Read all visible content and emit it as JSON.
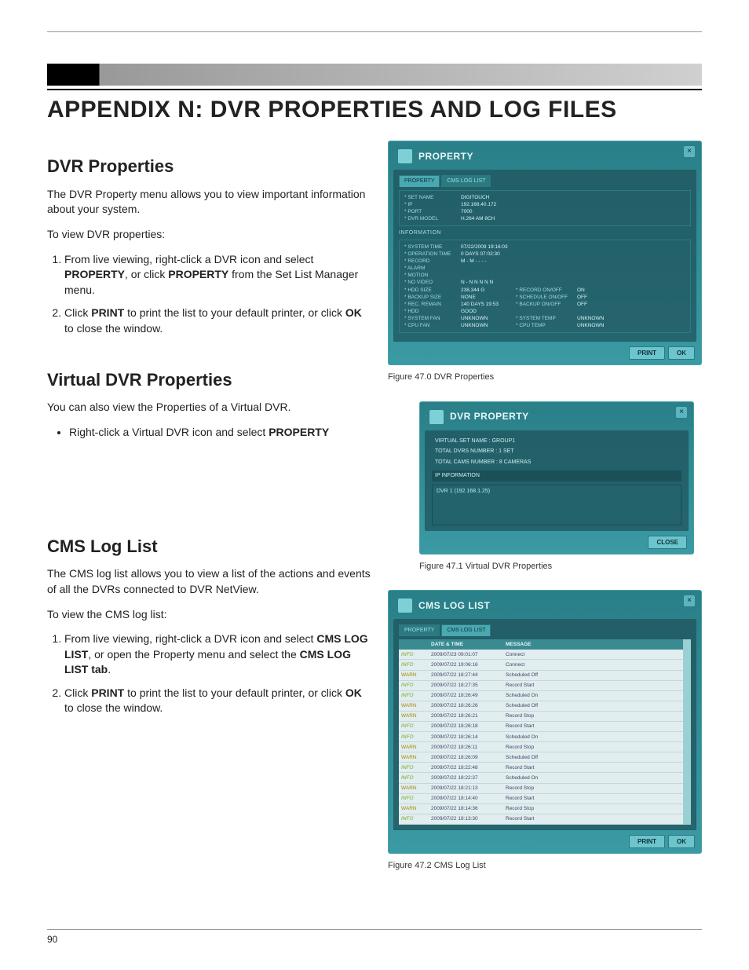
{
  "page_number": "90",
  "main_title": "APPENDIX N: DVR PROPERTIES AND LOG FILES",
  "sections": {
    "dvr_props": {
      "heading": "DVR Properties",
      "intro": "The DVR Property menu allows you to view important information about your system.",
      "lead": "To view DVR properties:",
      "step1_pre": "From live viewing, right-click a DVR icon and select ",
      "step1_b1": "PROPERTY",
      "step1_mid": ", or click ",
      "step1_b2": "PROPERTY",
      "step1_post": " from the Set List Manager menu.",
      "step2_pre": "Click ",
      "step2_b1": "PRINT",
      "step2_mid": " to print the list to your default printer, or click ",
      "step2_b2": "OK",
      "step2_post": " to close the window."
    },
    "virtual": {
      "heading": "Virtual DVR Properties",
      "intro": "You can also view the Properties of a Virtual DVR.",
      "bullet_pre": "Right-click a Virtual DVR icon and select ",
      "bullet_b": "PROPERTY"
    },
    "cms": {
      "heading": "CMS Log List",
      "intro": "The CMS log list allows you to view a list of the actions and events of all the DVRs connected to DVR NetView.",
      "lead": "To view the CMS log list:",
      "step1_pre": "From live viewing, right-click a DVR icon and select ",
      "step1_b1": "CMS LOG LIST",
      "step1_mid": ", or open the Property menu and select the ",
      "step1_b2": "CMS LOG LIST tab",
      "step1_post": ".",
      "step2_pre": "Click ",
      "step2_b1": "PRINT",
      "step2_mid": " to print the list to your default printer, or click ",
      "step2_b2": "OK",
      "step2_post": " to close the window."
    }
  },
  "figures": {
    "fig0": {
      "caption": "Figure 47.0 DVR Properties",
      "window_title": "PROPERTY",
      "tab_active": "PROPERTY",
      "tab_inactive": "CMS LOG LIST",
      "top": [
        {
          "k": "* SET NAME",
          "v": "DIGITOUCH"
        },
        {
          "k": "* IP",
          "v": "192.168.40.172"
        },
        {
          "k": "* PORT",
          "v": "7000"
        },
        {
          "k": "* DVR MODEL",
          "v": "H.264 AM 8CH"
        }
      ],
      "info_title": "INFORMATION",
      "info": [
        {
          "k": "* SYSTEM TIME",
          "v": "07/22/2009 19:16:03",
          "k2": "",
          "v2": ""
        },
        {
          "k": "* OPERATION TIME",
          "v": "0 DAYS 07:02:30",
          "k2": "",
          "v2": ""
        },
        {
          "k": "* RECORD",
          "v": "M - M - - - -",
          "k2": "",
          "v2": ""
        },
        {
          "k": "* ALARM",
          "v": "",
          "k2": "",
          "v2": ""
        },
        {
          "k": "* MOTION",
          "v": "",
          "k2": "",
          "v2": ""
        },
        {
          "k": "* NO VIDEO",
          "v": "N - N  N N N N",
          "k2": "",
          "v2": ""
        },
        {
          "k": "* HDD SIZE",
          "v": "238,344 G",
          "k2": "* RECORD ON/OFF",
          "v2": "ON"
        },
        {
          "k": "* BACKUP SIZE",
          "v": "NONE",
          "k2": "* SCHEDULE ON/OFF",
          "v2": "OFF"
        },
        {
          "k": "* REC. REMAIN",
          "v": "140 DAYS 19:53",
          "k2": "* BACKUP ON/OFF",
          "v2": "OFF"
        },
        {
          "k": "* HDD",
          "v": "GOOD",
          "k2": "",
          "v2": ""
        },
        {
          "k": "* SYSTEM FAN",
          "v": "UNKNOWN",
          "k2": "* SYSTEM TEMP",
          "v2": "UNKNOWN"
        },
        {
          "k": "* CPU FAN",
          "v": "UNKNOWN",
          "k2": "* CPU TEMP",
          "v2": "UNKNOWN"
        }
      ],
      "btn_print": "PRINT",
      "btn_ok": "OK"
    },
    "fig1": {
      "caption": "Figure 47.1 Virtual DVR Properties",
      "window_title": "DVR PROPERTY",
      "lines": [
        "VIRTUAL SET NAME :  GROUP1",
        "TOTAL DVRS NUMBER :  1 SET",
        "TOTAL CAMS NUMBER :  8 CAMERAS"
      ],
      "ip_header": "IP INFORMATION",
      "ip_line": "DVR 1 (192.168.1.25)",
      "btn_close": "CLOSE"
    },
    "fig2": {
      "caption": "Figure 47.2 CMS Log List",
      "window_title": "CMS LOG LIST",
      "tab_inactive": "PROPERTY",
      "tab_active": "CMS LOG LIST",
      "col_date": "DATE & TIME",
      "col_msg": "MESSAGE",
      "rows": [
        {
          "lvl": "INFO",
          "dt": "2009/07/23 09:01:07",
          "msg": "Connect"
        },
        {
          "lvl": "INFO",
          "dt": "2009/07/22 19:06:16",
          "msg": "Connect"
        },
        {
          "lvl": "WARN",
          "dt": "2009/07/22 18:27:44",
          "msg": "Scheduled Off"
        },
        {
          "lvl": "INFO",
          "dt": "2009/07/22 18:27:35",
          "msg": "Record Start"
        },
        {
          "lvl": "INFO",
          "dt": "2009/07/22 18:26:49",
          "msg": "Scheduled On"
        },
        {
          "lvl": "WARN",
          "dt": "2009/07/22 18:26:26",
          "msg": "Scheduled Off"
        },
        {
          "lvl": "WARN",
          "dt": "2009/07/22 18:26:21",
          "msg": "Record Stop"
        },
        {
          "lvl": "INFO",
          "dt": "2009/07/22 18:26:18",
          "msg": "Record Start"
        },
        {
          "lvl": "INFO",
          "dt": "2009/07/22 18:26:14",
          "msg": "Scheduled On"
        },
        {
          "lvl": "WARN",
          "dt": "2009/07/22 18:26:11",
          "msg": "Record Stop"
        },
        {
          "lvl": "WARN",
          "dt": "2009/07/22 18:26:09",
          "msg": "Scheduled Off"
        },
        {
          "lvl": "INFO",
          "dt": "2009/07/22 18:22:48",
          "msg": "Record Start"
        },
        {
          "lvl": "INFO",
          "dt": "2009/07/22 18:22:37",
          "msg": "Scheduled On"
        },
        {
          "lvl": "WARN",
          "dt": "2009/07/22 18:21:13",
          "msg": "Record Stop"
        },
        {
          "lvl": "INFO",
          "dt": "2009/07/22 18:14:40",
          "msg": "Record Start"
        },
        {
          "lvl": "WARN",
          "dt": "2009/07/22 18:14:36",
          "msg": "Record Stop"
        },
        {
          "lvl": "INFO",
          "dt": "2009/07/22 18:13:30",
          "msg": "Record Start"
        }
      ],
      "btn_print": "PRINT",
      "btn_ok": "OK"
    }
  },
  "colors": {
    "teal_bg": "#2a7f88",
    "teal_light": "#6cc4cc",
    "text": "#222222"
  }
}
